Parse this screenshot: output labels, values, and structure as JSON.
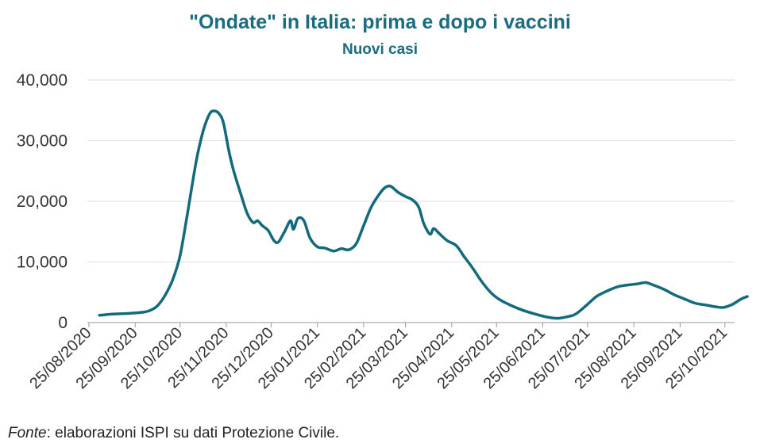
{
  "header": {
    "title": "\"Ondate\" in Italia: prima e dopo i vaccini",
    "subtitle": "Nuovi casi"
  },
  "footer": {
    "source_label": "Fonte",
    "source_text": ": elaborazioni ISPI su dati Protezione Civile."
  },
  "colors": {
    "line": "#136a7c",
    "title": "#1a6d80"
  },
  "chart_data": {
    "type": "line",
    "title": "\"Ondate\" in Italia: prima e dopo i vaccini",
    "subtitle": "Nuovi casi",
    "xlabel": "",
    "ylabel": "",
    "ylim": [
      0,
      40000
    ],
    "y_ticks": [
      0,
      10000,
      20000,
      30000,
      40000
    ],
    "y_tick_labels": [
      "0",
      "10,000",
      "20,000",
      "30,000",
      "40,000"
    ],
    "x_ticks": [
      "2020-08-25",
      "2020-09-25",
      "2020-10-25",
      "2020-11-25",
      "2020-12-25",
      "2021-01-25",
      "2021-02-25",
      "2021-03-25",
      "2021-04-25",
      "2021-05-25",
      "2021-06-25",
      "2021-07-25",
      "2021-08-25",
      "2021-09-25",
      "2021-10-25"
    ],
    "x_tick_labels": [
      "25/08/2020",
      "25/09/2020",
      "25/10/2020",
      "25/11/2020",
      "25/12/2020",
      "25/01/2021",
      "25/02/2021",
      "25/03/2021",
      "25/04/2021",
      "25/05/2021",
      "25/06/2021",
      "25/07/2021",
      "25/08/2021",
      "25/09/2021",
      "25/10/2021"
    ],
    "grid": true,
    "legend": "none",
    "series": [
      {
        "points": [
          [
            "2020-09-01",
            1200
          ],
          [
            "2020-09-10",
            1400
          ],
          [
            "2020-09-20",
            1500
          ],
          [
            "2020-09-30",
            1700
          ],
          [
            "2020-10-05",
            2000
          ],
          [
            "2020-10-10",
            2800
          ],
          [
            "2020-10-15",
            4500
          ],
          [
            "2020-10-20",
            7000
          ],
          [
            "2020-10-25",
            11000
          ],
          [
            "2020-10-30",
            18000
          ],
          [
            "2020-11-03",
            24000
          ],
          [
            "2020-11-06",
            28000
          ],
          [
            "2020-11-10",
            32000
          ],
          [
            "2020-11-14",
            34500
          ],
          [
            "2020-11-17",
            34900
          ],
          [
            "2020-11-20",
            34500
          ],
          [
            "2020-11-23",
            33000
          ],
          [
            "2020-11-27",
            28000
          ],
          [
            "2020-11-30",
            25000
          ],
          [
            "2020-12-05",
            21000
          ],
          [
            "2020-12-09",
            18000
          ],
          [
            "2020-12-13",
            16500
          ],
          [
            "2020-12-16",
            16800
          ],
          [
            "2020-12-19",
            16000
          ],
          [
            "2020-12-23",
            15200
          ],
          [
            "2020-12-27",
            13500
          ],
          [
            "2020-12-30",
            13300
          ],
          [
            "2021-01-03",
            15000
          ],
          [
            "2021-01-07",
            16800
          ],
          [
            "2021-01-09",
            15400
          ],
          [
            "2021-01-12",
            17200
          ],
          [
            "2021-01-16",
            16800
          ],
          [
            "2021-01-20",
            14000
          ],
          [
            "2021-01-25",
            12500
          ],
          [
            "2021-01-30",
            12300
          ],
          [
            "2021-02-05",
            11800
          ],
          [
            "2021-02-10",
            12200
          ],
          [
            "2021-02-15",
            12000
          ],
          [
            "2021-02-20",
            13000
          ],
          [
            "2021-02-25",
            16000
          ],
          [
            "2021-03-02",
            19000
          ],
          [
            "2021-03-07",
            21000
          ],
          [
            "2021-03-11",
            22200
          ],
          [
            "2021-03-15",
            22500
          ],
          [
            "2021-03-20",
            21500
          ],
          [
            "2021-03-25",
            20800
          ],
          [
            "2021-03-30",
            20200
          ],
          [
            "2021-04-03",
            19000
          ],
          [
            "2021-04-06",
            16500
          ],
          [
            "2021-04-09",
            15000
          ],
          [
            "2021-04-11",
            14600
          ],
          [
            "2021-04-13",
            15500
          ],
          [
            "2021-04-17",
            14600
          ],
          [
            "2021-04-22",
            13500
          ],
          [
            "2021-04-28",
            12700
          ],
          [
            "2021-05-03",
            11000
          ],
          [
            "2021-05-09",
            9000
          ],
          [
            "2021-05-15",
            6800
          ],
          [
            "2021-05-21",
            5000
          ],
          [
            "2021-05-27",
            3800
          ],
          [
            "2021-06-04",
            2800
          ],
          [
            "2021-06-12",
            2000
          ],
          [
            "2021-06-20",
            1400
          ],
          [
            "2021-06-28",
            900
          ],
          [
            "2021-07-05",
            700
          ],
          [
            "2021-07-12",
            1000
          ],
          [
            "2021-07-17",
            1400
          ],
          [
            "2021-07-24",
            2800
          ],
          [
            "2021-07-31",
            4300
          ],
          [
            "2021-08-07",
            5200
          ],
          [
            "2021-08-14",
            5900
          ],
          [
            "2021-08-21",
            6200
          ],
          [
            "2021-08-28",
            6400
          ],
          [
            "2021-09-02",
            6600
          ],
          [
            "2021-09-07",
            6200
          ],
          [
            "2021-09-14",
            5500
          ],
          [
            "2021-09-21",
            4600
          ],
          [
            "2021-09-28",
            3900
          ],
          [
            "2021-10-05",
            3200
          ],
          [
            "2021-10-12",
            2900
          ],
          [
            "2021-10-19",
            2600
          ],
          [
            "2021-10-24",
            2500
          ],
          [
            "2021-10-30",
            3000
          ],
          [
            "2021-11-05",
            3900
          ],
          [
            "2021-11-09",
            4300
          ]
        ]
      }
    ]
  }
}
